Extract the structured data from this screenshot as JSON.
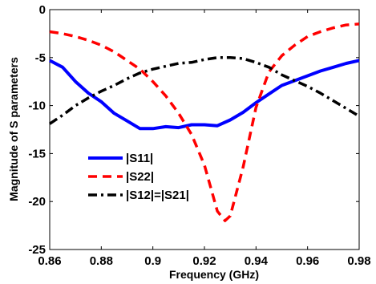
{
  "chart_data": {
    "type": "line",
    "xlabel": "Frequency (GHz)",
    "ylabel": "Magnitude of S parameters",
    "xlim": [
      0.86,
      0.98
    ],
    "ylim": [
      -25,
      0
    ],
    "xticks": [
      0.86,
      0.88,
      0.9,
      0.92,
      0.94,
      0.96,
      0.98
    ],
    "xtick_labels": [
      "0.86",
      "0.88",
      "0.9",
      "0.92",
      "0.94",
      "0.96",
      "0.98"
    ],
    "yticks": [
      -25,
      -20,
      -15,
      -10,
      -5,
      0
    ],
    "ytick_labels": [
      "-25",
      "-20",
      "-15",
      "-10",
      "-5",
      "0"
    ],
    "grid": false,
    "legend_position": "lower-left",
    "series": [
      {
        "name": "|S11|",
        "color": "#0000ff",
        "style": "solid",
        "x": [
          0.86,
          0.865,
          0.87,
          0.875,
          0.88,
          0.885,
          0.89,
          0.895,
          0.9,
          0.905,
          0.91,
          0.915,
          0.92,
          0.925,
          0.93,
          0.935,
          0.94,
          0.945,
          0.95,
          0.955,
          0.96,
          0.965,
          0.97,
          0.975,
          0.98
        ],
        "values": [
          -5.3,
          -6.0,
          -7.5,
          -8.7,
          -9.6,
          -10.8,
          -11.6,
          -12.4,
          -12.4,
          -12.2,
          -12.3,
          -12.0,
          -12.0,
          -12.1,
          -11.5,
          -10.7,
          -9.7,
          -8.8,
          -7.9,
          -7.4,
          -6.9,
          -6.4,
          -6.0,
          -5.6,
          -5.3
        ]
      },
      {
        "name": "|S22|",
        "color": "#ff0000",
        "style": "dashed",
        "x": [
          0.86,
          0.865,
          0.87,
          0.875,
          0.88,
          0.885,
          0.89,
          0.895,
          0.9,
          0.905,
          0.91,
          0.915,
          0.92,
          0.925,
          0.928,
          0.93,
          0.935,
          0.94,
          0.945,
          0.95,
          0.955,
          0.96,
          0.965,
          0.97,
          0.975,
          0.98
        ],
        "values": [
          -2.3,
          -2.5,
          -2.8,
          -3.2,
          -3.7,
          -4.4,
          -5.3,
          -6.2,
          -7.5,
          -9.0,
          -10.8,
          -13.0,
          -16.2,
          -21.0,
          -22.0,
          -21.5,
          -16.4,
          -10.2,
          -6.5,
          -4.8,
          -3.7,
          -2.8,
          -2.3,
          -1.9,
          -1.6,
          -1.5
        ]
      },
      {
        "name": "|S12|=|S21|",
        "color": "#000000",
        "style": "dashdot",
        "x": [
          0.86,
          0.865,
          0.87,
          0.875,
          0.88,
          0.885,
          0.89,
          0.895,
          0.9,
          0.905,
          0.91,
          0.915,
          0.92,
          0.925,
          0.93,
          0.935,
          0.94,
          0.945,
          0.95,
          0.955,
          0.96,
          0.965,
          0.97,
          0.975,
          0.98
        ],
        "values": [
          -11.9,
          -11.0,
          -10.0,
          -9.2,
          -8.5,
          -7.9,
          -7.2,
          -6.6,
          -6.2,
          -5.9,
          -5.6,
          -5.5,
          -5.2,
          -5.0,
          -5.0,
          -5.1,
          -5.5,
          -6.0,
          -6.8,
          -7.4,
          -8.0,
          -8.7,
          -9.5,
          -10.3,
          -11.1
        ]
      }
    ]
  }
}
